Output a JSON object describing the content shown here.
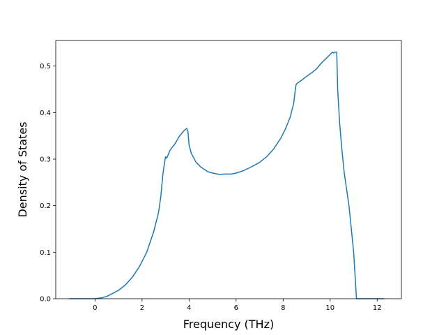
{
  "chart_data": {
    "type": "line",
    "title": "",
    "xlabel": "Frequency (THz)",
    "ylabel": "Density of States",
    "xlim": [
      -1.67,
      13.03
    ],
    "ylim": [
      0,
      0.555
    ],
    "xticks": [
      0,
      2,
      4,
      6,
      8,
      10,
      12
    ],
    "xtick_labels": [
      "0",
      "2",
      "4",
      "6",
      "8",
      "10",
      "12"
    ],
    "yticks": [
      0.0,
      0.1,
      0.2,
      0.3,
      0.4,
      0.5
    ],
    "ytick_labels": [
      "0.0",
      "0.1",
      "0.2",
      "0.3",
      "0.4",
      "0.5"
    ],
    "grid": false,
    "line_color": "#1f77b4",
    "series": [
      {
        "x": [
          -1.1,
          -0.5,
          0.0,
          0.3,
          0.5,
          0.7,
          1.0,
          1.3,
          1.6,
          1.9,
          2.2,
          2.5,
          2.7,
          2.8,
          2.88,
          2.95,
          3.0,
          3.05,
          3.1,
          3.2,
          3.4,
          3.6,
          3.8,
          3.9,
          3.95,
          4.0,
          4.1,
          4.3,
          4.5,
          4.8,
          5.0,
          5.3,
          5.5,
          5.8,
          6.0,
          6.3,
          6.6,
          7.0,
          7.3,
          7.6,
          7.9,
          8.1,
          8.3,
          8.45,
          8.52,
          8.55,
          8.6,
          8.8,
          9.0,
          9.2,
          9.4,
          9.6,
          9.8,
          10.0,
          10.1,
          10.15,
          10.2,
          10.28,
          10.32,
          10.4,
          10.5,
          10.6,
          10.8,
          11.0,
          11.12,
          11.2,
          11.3,
          11.6,
          12.0,
          12.3
        ],
        "y": [
          0.0,
          0.0,
          0.0,
          0.002,
          0.005,
          0.01,
          0.018,
          0.03,
          0.047,
          0.07,
          0.1,
          0.145,
          0.185,
          0.22,
          0.265,
          0.29,
          0.305,
          0.302,
          0.308,
          0.32,
          0.333,
          0.35,
          0.362,
          0.366,
          0.36,
          0.33,
          0.312,
          0.293,
          0.283,
          0.273,
          0.27,
          0.267,
          0.268,
          0.268,
          0.27,
          0.275,
          0.282,
          0.293,
          0.305,
          0.322,
          0.345,
          0.365,
          0.39,
          0.42,
          0.45,
          0.46,
          0.463,
          0.47,
          0.478,
          0.485,
          0.493,
          0.505,
          0.515,
          0.525,
          0.53,
          0.528,
          0.53,
          0.53,
          0.45,
          0.38,
          0.32,
          0.27,
          0.2,
          0.1,
          0.0,
          0.0,
          0.0,
          0.0,
          0.0,
          0.0
        ]
      }
    ]
  }
}
